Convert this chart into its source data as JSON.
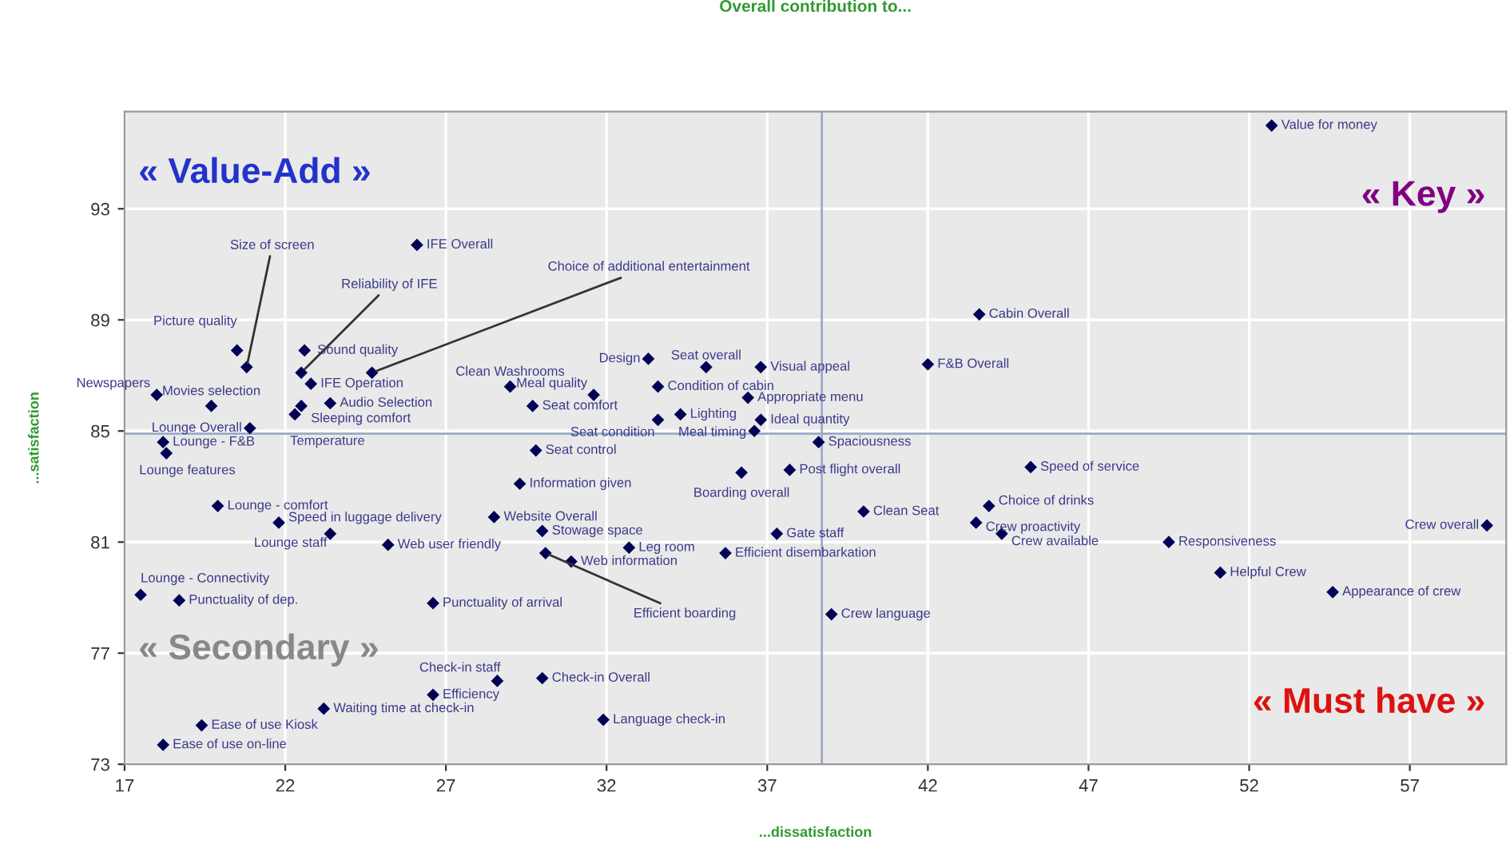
{
  "chart_data": {
    "type": "scatter",
    "title": "Overall contribution to...",
    "xlabel": "...dissatisfaction",
    "ylabel": "...satisfaction",
    "xlim": [
      17,
      60
    ],
    "ylim": [
      73,
      96.5
    ],
    "xticks": [
      17,
      22,
      27,
      32,
      37,
      42,
      47,
      52,
      57
    ],
    "yticks": [
      73,
      77,
      81,
      85,
      89,
      93
    ],
    "grid": true,
    "marker": "diamond",
    "ref_lines": [
      {
        "axis": "x",
        "value": 38.7,
        "color": "#9aaac8"
      },
      {
        "axis": "y",
        "value": 84.9,
        "color": "#9aaac8"
      }
    ],
    "annotations": [
      "« Value-Add »",
      "« Key »",
      "« Secondary »",
      "« Must have »"
    ],
    "series": [
      {
        "color": "#000055",
        "x": [
          52.7,
          43.6,
          42.0,
          26.1,
          20.5,
          20.8,
          19.7,
          18.0,
          20.9,
          18.2,
          18.3,
          22.6,
          22.5,
          22.8,
          22.5,
          22.3,
          23.4,
          24.7,
          29.0,
          31.6,
          29.7,
          33.3,
          35.1,
          36.8,
          33.6,
          36.4,
          34.3,
          33.6,
          36.8,
          36.6,
          38.6,
          37.7,
          36.2,
          29.8,
          29.3,
          28.5,
          30.0,
          32.7,
          30.9,
          30.1,
          25.2,
          23.4,
          21.8,
          19.9,
          35.7,
          37.3,
          40.0,
          39.0,
          26.6,
          17.5,
          18.7,
          28.6,
          30.0,
          26.6,
          23.2,
          19.4,
          18.2,
          31.9,
          45.2,
          43.9,
          43.5,
          44.3,
          49.5,
          51.1,
          54.6,
          59.4
        ],
        "values": [
          96.0,
          89.2,
          87.4,
          91.7,
          87.9,
          87.3,
          85.9,
          86.3,
          85.1,
          84.6,
          84.2,
          87.9,
          87.1,
          86.7,
          85.9,
          85.6,
          86.0,
          87.1,
          86.6,
          86.3,
          85.9,
          87.6,
          87.3,
          87.3,
          86.6,
          86.2,
          85.6,
          85.4,
          85.4,
          85.0,
          84.6,
          83.6,
          83.5,
          84.3,
          83.1,
          81.9,
          81.4,
          80.8,
          80.3,
          80.6,
          80.9,
          81.3,
          81.7,
          82.3,
          80.6,
          81.3,
          82.1,
          78.4,
          78.8,
          79.1,
          78.9,
          76.0,
          76.1,
          75.5,
          75.0,
          74.4,
          73.7,
          74.6,
          83.7,
          82.3,
          81.7,
          81.3,
          81.0,
          79.9,
          79.2,
          81.6
        ],
        "value_labels": [
          "Value for money",
          "Cabin Overall",
          "F&B Overall",
          "IFE Overall",
          "Picture quality",
          "Size of screen",
          "Movies selection",
          "Newspapers",
          "Lounge Overall",
          "Lounge - F&B",
          "Lounge features",
          "Sound quality",
          "Reliability of IFE",
          "IFE Operation",
          "Sleeping comfort",
          "Temperature",
          "Audio Selection",
          "Choice of additional entertainment",
          "Clean Washrooms",
          "Meal quality",
          "Seat comfort",
          "Design",
          "Seat overall",
          "Visual appeal",
          "Condition of cabin",
          "Appropriate menu",
          "Lighting",
          "Seat condition",
          "Ideal quantity",
          "Meal timing",
          "Spaciousness",
          "Post flight overall",
          "Boarding overall",
          "Seat control",
          "Information given",
          "Website Overall",
          "Stowage space",
          "Leg room",
          "Web information",
          "Efficient boarding",
          "Web user friendly",
          "Lounge staff",
          "Speed in luggage delivery",
          "Lounge - comfort",
          "Efficient disembarkation",
          "Gate staff",
          "Clean Seat",
          "Crew language",
          "Punctuality of arrival",
          "Lounge - Connectivity",
          "Punctuality of dep.",
          "Check-in staff",
          "Check-in Overall",
          "Efficiency",
          "Waiting time at check-in",
          "Ease of use Kiosk",
          "Ease of use on-line",
          "Language check-in",
          "Speed of service",
          "Choice of drinks",
          "Crew proactivity",
          "Crew available",
          "Responsiveness",
          "Helpful Crew",
          "Appearance of crew",
          "Crew overall"
        ]
      }
    ]
  }
}
